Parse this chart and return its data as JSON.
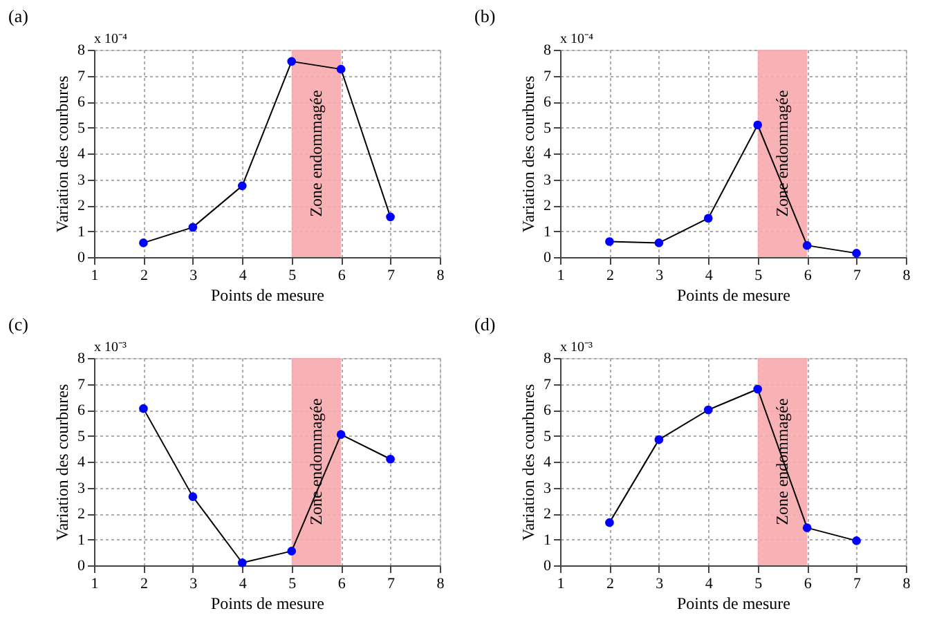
{
  "chart_data": [
    {
      "type": "line",
      "title": "(a)",
      "xlabel": "Points de mesure",
      "ylabel": "Variation des courbures",
      "annotations": [
        "x 10⁻⁴"
      ],
      "x": [
        2,
        3,
        4,
        5,
        6,
        7
      ],
      "series": [
        {
          "color": "#0000ff",
          "values": [
            0.55,
            1.15,
            2.75,
            7.55,
            7.25,
            1.55
          ]
        }
      ],
      "xlim": [
        1,
        8
      ],
      "xticks": [
        1,
        2,
        3,
        4,
        5,
        6,
        7,
        8
      ],
      "ylim": [
        0,
        8
      ],
      "yticks": [
        0,
        1,
        2,
        3,
        4,
        5,
        6,
        7,
        8
      ],
      "grid": true,
      "marker": "circle",
      "line_style": "solid",
      "bands": [
        {
          "axis": "x",
          "from": 5,
          "to": 6,
          "label": "Zone endommagée",
          "color": "#f7a8ad"
        }
      ]
    },
    {
      "type": "line",
      "title": "(b)",
      "xlabel": "Points de mesure",
      "ylabel": "Variation des courbures",
      "annotations": [
        "x 10⁻⁴"
      ],
      "x": [
        2,
        3,
        4,
        5,
        6,
        7
      ],
      "series": [
        {
          "color": "#0000ff",
          "values": [
            0.6,
            0.55,
            1.5,
            5.1,
            0.45,
            0.15
          ]
        }
      ],
      "xlim": [
        1,
        8
      ],
      "xticks": [
        1,
        2,
        3,
        4,
        5,
        6,
        7,
        8
      ],
      "ylim": [
        0,
        8
      ],
      "yticks": [
        0,
        1,
        2,
        3,
        4,
        5,
        6,
        7,
        8
      ],
      "grid": true,
      "marker": "circle",
      "line_style": "solid",
      "bands": [
        {
          "axis": "x",
          "from": 5,
          "to": 6,
          "label": "Zone endommagée",
          "color": "#f7a8ad"
        }
      ]
    },
    {
      "type": "line",
      "title": "(c)",
      "xlabel": "Points de mesure",
      "ylabel": "Variation des courbures",
      "annotations": [
        "x 10⁻³"
      ],
      "x": [
        2,
        3,
        4,
        5,
        6,
        7
      ],
      "series": [
        {
          "color": "#0000ff",
          "values": [
            6.05,
            2.65,
            0.1,
            0.55,
            5.05,
            4.1
          ]
        }
      ],
      "xlim": [
        1,
        8
      ],
      "xticks": [
        1,
        2,
        3,
        4,
        5,
        6,
        7,
        8
      ],
      "ylim": [
        0,
        8
      ],
      "yticks": [
        0,
        1,
        2,
        3,
        4,
        5,
        6,
        7,
        8
      ],
      "grid": true,
      "marker": "circle",
      "line_style": "solid",
      "bands": [
        {
          "axis": "x",
          "from": 5,
          "to": 6,
          "label": "Zone endommagée",
          "color": "#f7a8ad"
        }
      ]
    },
    {
      "type": "line",
      "title": "(d)",
      "xlabel": "Points de mesure",
      "ylabel": "Variation des courbures",
      "annotations": [
        "x 10⁻³"
      ],
      "x": [
        2,
        3,
        4,
        5,
        6,
        7
      ],
      "series": [
        {
          "color": "#0000ff",
          "values": [
            1.65,
            4.85,
            6.0,
            6.8,
            1.45,
            0.95
          ]
        }
      ],
      "xlim": [
        1,
        8
      ],
      "xticks": [
        1,
        2,
        3,
        4,
        5,
        6,
        7,
        8
      ],
      "ylim": [
        0,
        8
      ],
      "yticks": [
        0,
        1,
        2,
        3,
        4,
        5,
        6,
        7,
        8
      ],
      "grid": true,
      "marker": "circle",
      "line_style": "solid",
      "bands": [
        {
          "axis": "x",
          "from": 5,
          "to": 6,
          "label": "Zone endommagée",
          "color": "#f7a8ad"
        }
      ]
    }
  ]
}
